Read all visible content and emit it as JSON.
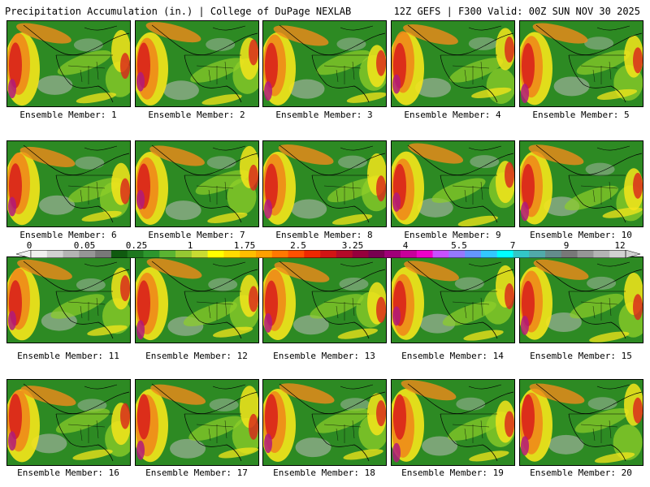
{
  "header": {
    "title": "Precipitation Accumulation (in.) | College of DuPage NEXLAB",
    "run_info": "12Z GEFS | F300 Valid: 00Z SUN NOV 30 2025"
  },
  "colors": {
    "land": "#2d8a23",
    "light_precip": "#8fcf2a",
    "moderate": "#f5e51b",
    "heavy": "#f08a1a",
    "very_heavy": "#d9231b",
    "extreme": "#b21a7a",
    "ocean_dry": "#bcbcbc",
    "borders": "#000000"
  },
  "colorbar": {
    "ticks": [
      "0",
      "0.05",
      "0.25",
      "1",
      "1.75",
      "2.5",
      "3.25",
      "4",
      "5.5",
      "7",
      "9",
      "12"
    ],
    "colors": [
      "#f0f0f0",
      "#d2d2d2",
      "#b4b4b4",
      "#969696",
      "#787878",
      "#0f5a0f",
      "#1e781e",
      "#2d962d",
      "#5ab432",
      "#96c832",
      "#c8dc32",
      "#ffff00",
      "#ffdc00",
      "#ffbe00",
      "#ffa000",
      "#ff7800",
      "#ff5000",
      "#f02800",
      "#d21414",
      "#b40a28",
      "#96003c",
      "#780050",
      "#a00078",
      "#c8009b",
      "#f000c8",
      "#c850ff",
      "#9678ff",
      "#6496ff",
      "#32c8ff",
      "#00ffff",
      "#32c8c8",
      "#50aaaa",
      "#648c8c",
      "#787878",
      "#969696",
      "#b4b4b4",
      "#d2d2d2"
    ]
  },
  "members": [
    {
      "label": "Ensemble Member: 1"
    },
    {
      "label": "Ensemble Member: 2"
    },
    {
      "label": "Ensemble Member: 3"
    },
    {
      "label": "Ensemble Member: 4"
    },
    {
      "label": "Ensemble Member: 5"
    },
    {
      "label": "Ensemble Member: 6"
    },
    {
      "label": "Ensemble Member: 7"
    },
    {
      "label": "Ensemble Member: 8"
    },
    {
      "label": "Ensemble Member: 9"
    },
    {
      "label": "Ensemble Member: 10"
    },
    {
      "label": "Ensemble Member: 11"
    },
    {
      "label": "Ensemble Member: 12"
    },
    {
      "label": "Ensemble Member: 13"
    },
    {
      "label": "Ensemble Member: 14"
    },
    {
      "label": "Ensemble Member: 15"
    },
    {
      "label": "Ensemble Member: 16"
    },
    {
      "label": "Ensemble Member: 17"
    },
    {
      "label": "Ensemble Member: 18"
    },
    {
      "label": "Ensemble Member: 19"
    },
    {
      "label": "Ensemble Member: 20"
    }
  ]
}
